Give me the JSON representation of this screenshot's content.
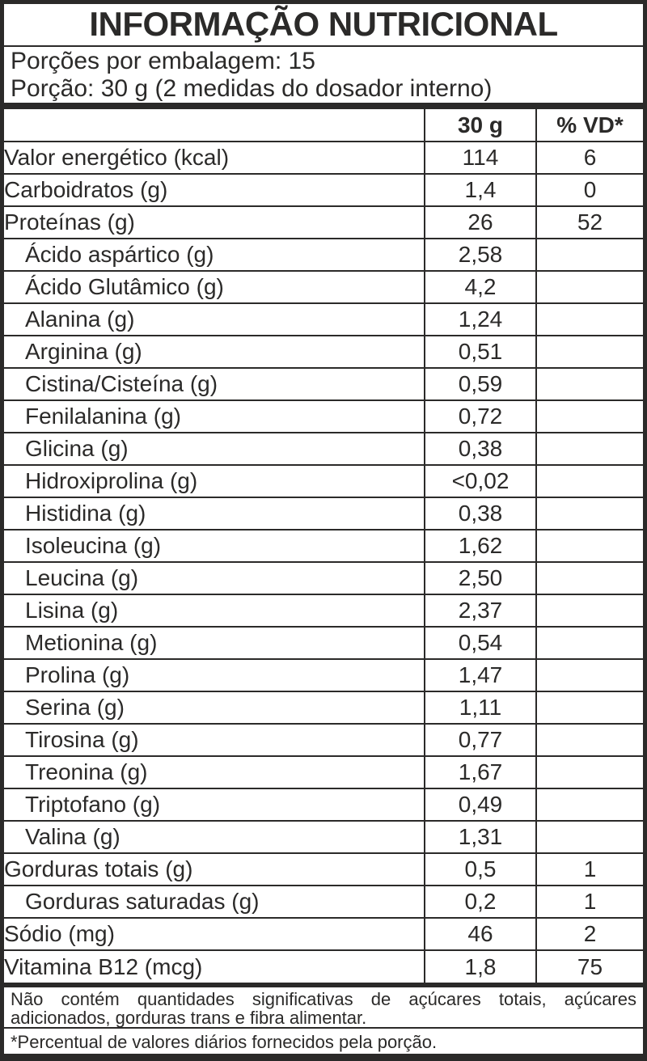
{
  "title": "INFORMAÇÃO NUTRICIONAL",
  "serving_info": {
    "servings_per_package": "Porções por embalagem: 15",
    "serving_size": "Porção: 30 g (2 medidas do dosador interno)"
  },
  "table": {
    "columns": [
      "",
      "30 g",
      "% VD*"
    ],
    "rows": [
      {
        "label": "Valor energético (kcal)",
        "amount": "114",
        "vd": "6",
        "indent": false
      },
      {
        "label": "Carboidratos (g)",
        "amount": "1,4",
        "vd": "0",
        "indent": false
      },
      {
        "label": "Proteínas (g)",
        "amount": "26",
        "vd": "52",
        "indent": false
      },
      {
        "label": "Ácido aspártico (g)",
        "amount": "2,58",
        "vd": "",
        "indent": true
      },
      {
        "label": "Ácido Glutâmico (g)",
        "amount": "4,2",
        "vd": "",
        "indent": true
      },
      {
        "label": "Alanina (g)",
        "amount": "1,24",
        "vd": "",
        "indent": true
      },
      {
        "label": "Arginina (g)",
        "amount": "0,51",
        "vd": "",
        "indent": true
      },
      {
        "label": "Cistina/Cisteína (g)",
        "amount": "0,59",
        "vd": "",
        "indent": true
      },
      {
        "label": "Fenilalanina (g)",
        "amount": "0,72",
        "vd": "",
        "indent": true
      },
      {
        "label": "Glicina (g)",
        "amount": "0,38",
        "vd": "",
        "indent": true
      },
      {
        "label": "Hidroxiprolina (g)",
        "amount": "<0,02",
        "vd": "",
        "indent": true
      },
      {
        "label": "Histidina (g)",
        "amount": "0,38",
        "vd": "",
        "indent": true
      },
      {
        "label": "Isoleucina (g)",
        "amount": "1,62",
        "vd": "",
        "indent": true
      },
      {
        "label": "Leucina (g)",
        "amount": "2,50",
        "vd": "",
        "indent": true
      },
      {
        "label": "Lisina (g)",
        "amount": "2,37",
        "vd": "",
        "indent": true
      },
      {
        "label": "Metionina (g)",
        "amount": "0,54",
        "vd": "",
        "indent": true
      },
      {
        "label": "Prolina (g)",
        "amount": "1,47",
        "vd": "",
        "indent": true
      },
      {
        "label": "Serina (g)",
        "amount": "1,11",
        "vd": "",
        "indent": true
      },
      {
        "label": "Tirosina (g)",
        "amount": "0,77",
        "vd": "",
        "indent": true
      },
      {
        "label": "Treonina (g)",
        "amount": "1,67",
        "vd": "",
        "indent": true
      },
      {
        "label": "Triptofano (g)",
        "amount": "0,49",
        "vd": "",
        "indent": true
      },
      {
        "label": "Valina (g)",
        "amount": "1,31",
        "vd": "",
        "indent": true
      },
      {
        "label": "Gorduras totais (g)",
        "amount": "0,5",
        "vd": "1",
        "indent": false
      },
      {
        "label": "Gorduras saturadas (g)",
        "amount": "0,2",
        "vd": "1",
        "indent": true
      },
      {
        "label": "Sódio (mg)",
        "amount": "46",
        "vd": "2",
        "indent": false
      },
      {
        "label": "Vitamina B12 (mcg)",
        "amount": "1,8",
        "vd": "75",
        "indent": false
      }
    ]
  },
  "footnotes": {
    "no_significant_amounts": "Não contém quantidades significativas de açúcares totais, açúcares adicionados, gorduras trans e fibra alimentar.",
    "percent_daily_values": "*Percentual de valores diários fornecidos pela porção."
  },
  "colors": {
    "ink": "#2b2a29",
    "background": "#ffffff"
  }
}
